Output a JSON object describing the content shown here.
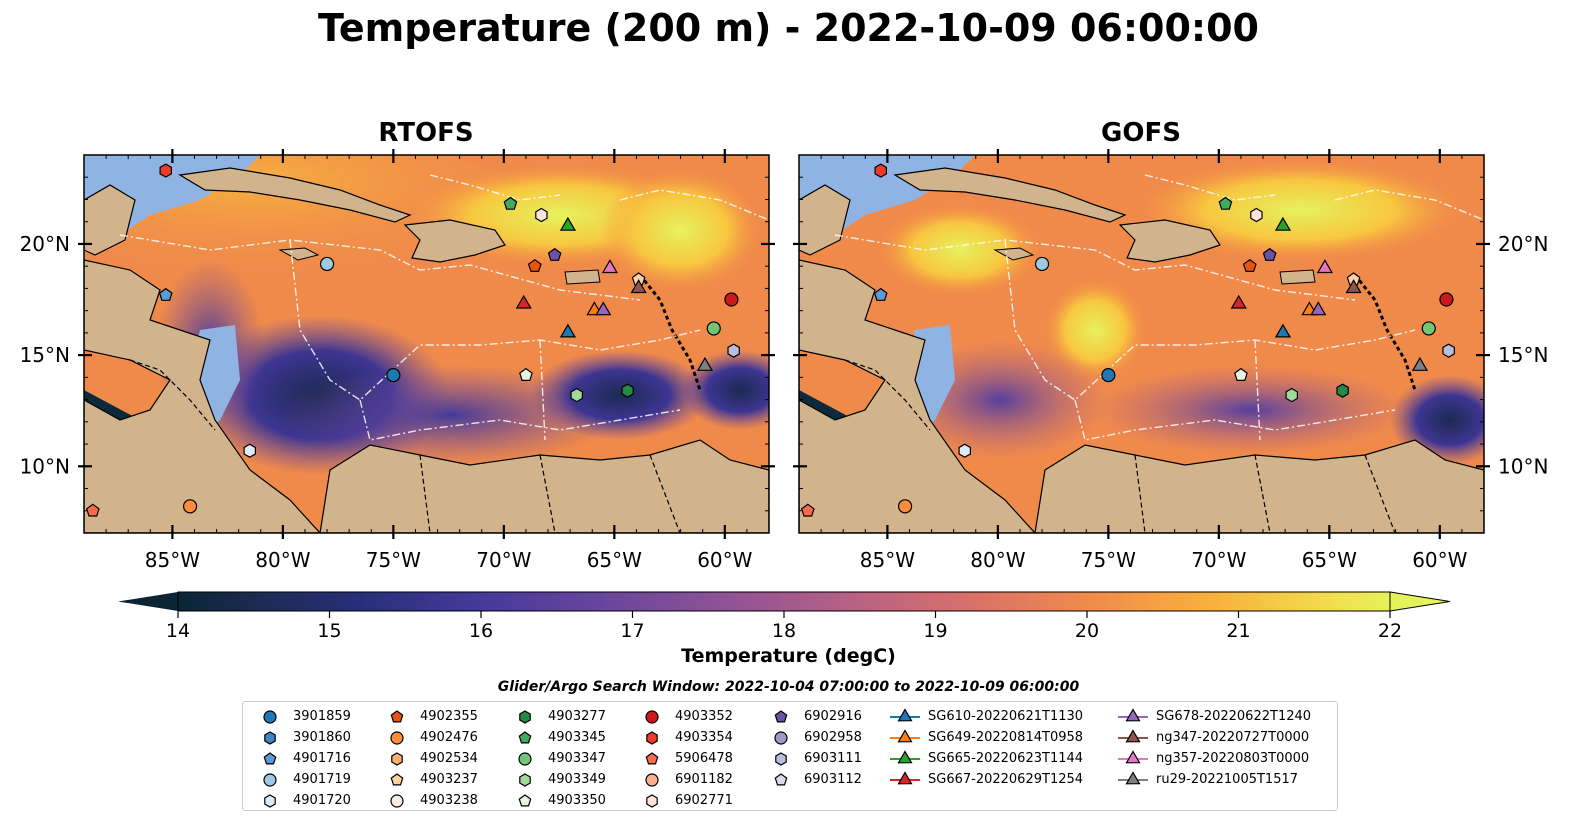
{
  "title": "Temperature (200 m) - 2022-10-09 06:00:00",
  "panels": [
    {
      "title": "RTOFS"
    },
    {
      "title": "GOFS"
    }
  ],
  "map": {
    "lon_range": [
      -89,
      -58
    ],
    "lat_range": [
      7,
      24
    ],
    "lon_ticks": [
      "85°W",
      "80°W",
      "75°W",
      "70°W",
      "65°W",
      "60°W"
    ],
    "lon_tick_values": [
      -85,
      -80,
      -75,
      -70,
      -65,
      -60
    ],
    "lat_ticks": [
      "10°N",
      "15°N",
      "20°N"
    ],
    "lat_tick_values": [
      10,
      15,
      20
    ],
    "land_color": "#d2b48c",
    "shelf_color": "#8fb4e3",
    "deep_color": "#0e2a3a"
  },
  "colorbar": {
    "label": "Temperature (degC)",
    "ticks": [
      "14",
      "15",
      "16",
      "17",
      "18",
      "19",
      "20",
      "21",
      "22"
    ],
    "range": [
      14,
      22
    ],
    "colors": [
      "#0b2535",
      "#1d2b54",
      "#282f7a",
      "#35348f",
      "#443a9a",
      "#563f9d",
      "#68459d",
      "#7b4c9b",
      "#8e5296",
      "#a1598f",
      "#b56085",
      "#c7677a",
      "#d86f6c",
      "#e57a5c",
      "#f08a4b",
      "#f69b41",
      "#f9af3d",
      "#f8c640",
      "#f1dd4c",
      "#e6f25b"
    ]
  },
  "legend": {
    "title": "Glider/Argo Search Window: 2022-10-04 07:00:00 to 2022-10-09 06:00:00",
    "columns": [
      [
        {
          "label": "3901859",
          "marker": "circle",
          "color": "#1f77b4"
        },
        {
          "label": "3901860",
          "marker": "hexagon",
          "color": "#3c86c4"
        },
        {
          "label": "4901716",
          "marker": "pentagon",
          "color": "#5a9bd5"
        },
        {
          "label": "4901719",
          "marker": "circle",
          "color": "#9ecae1"
        },
        {
          "label": "4901720",
          "marker": "hexagon",
          "color": "#deebf7"
        }
      ],
      [
        {
          "label": "4902355",
          "marker": "pentagon",
          "color": "#e6550d"
        },
        {
          "label": "4902476",
          "marker": "circle",
          "color": "#fd8d3c"
        },
        {
          "label": "4902534",
          "marker": "hexagon",
          "color": "#fdae6b"
        },
        {
          "label": "4903237",
          "marker": "pentagon",
          "color": "#fdd0a2"
        },
        {
          "label": "4903238",
          "marker": "circle",
          "color": "#feedde"
        }
      ],
      [
        {
          "label": "4903277",
          "marker": "hexagon",
          "color": "#238b45"
        },
        {
          "label": "4903345",
          "marker": "pentagon",
          "color": "#41ab5d"
        },
        {
          "label": "4903347",
          "marker": "circle",
          "color": "#74c476"
        },
        {
          "label": "4903349",
          "marker": "hexagon",
          "color": "#a1d99b"
        },
        {
          "label": "4903350",
          "marker": "pentagon",
          "color": "#e5f5e0"
        }
      ],
      [
        {
          "label": "4903352",
          "marker": "circle",
          "color": "#cb181d"
        },
        {
          "label": "4903354",
          "marker": "hexagon",
          "color": "#ef3b2c"
        },
        {
          "label": "5906478",
          "marker": "pentagon",
          "color": "#fb6a4a"
        },
        {
          "label": "6901182",
          "marker": "circle",
          "color": "#fcae91"
        },
        {
          "label": "6902771",
          "marker": "hexagon",
          "color": "#fee5d9"
        }
      ],
      [
        {
          "label": "6902916",
          "marker": "pentagon",
          "color": "#6a51a3"
        },
        {
          "label": "6902958",
          "marker": "circle",
          "color": "#9e9ac8"
        },
        {
          "label": "6903111",
          "marker": "hexagon",
          "color": "#bcbddc"
        },
        {
          "label": "6903112",
          "marker": "pentagon",
          "color": "#dadaeb"
        }
      ],
      [
        {
          "label": "SG610-20220621T1130",
          "marker": "triangle",
          "color": "#1f77b4"
        },
        {
          "label": "SG649-20220814T0958",
          "marker": "triangle",
          "color": "#ff7f0e"
        },
        {
          "label": "SG665-20220623T1144",
          "marker": "triangle",
          "color": "#2ca02c"
        },
        {
          "label": "SG667-20220629T1254",
          "marker": "triangle",
          "color": "#d62728"
        }
      ],
      [
        {
          "label": "SG678-20220622T1240",
          "marker": "triangle",
          "color": "#9467bd"
        },
        {
          "label": "ng347-20220727T0000",
          "marker": "triangle",
          "color": "#8c564b"
        },
        {
          "label": "ng357-20220803T0000",
          "marker": "triangle",
          "color": "#e377c2"
        },
        {
          "label": "ru29-20221005T1517",
          "marker": "triangle",
          "color": "#7f7f7f"
        }
      ]
    ]
  },
  "chart_data": {
    "type": "scatter",
    "title": "Temperature (200 m) - 2022-10-09 06:00:00",
    "xlabel": "",
    "ylabel": "",
    "xlim": [
      -89,
      -58
    ],
    "ylim": [
      7,
      24
    ],
    "series": [
      {
        "name": "3901859",
        "x": [
          -75.0
        ],
        "y": [
          14.1
        ]
      },
      {
        "name": "4901716",
        "x": [
          -85.3
        ],
        "y": [
          17.7
        ]
      },
      {
        "name": "4901719",
        "x": [
          -78.0
        ],
        "y": [
          19.1
        ]
      },
      {
        "name": "4901720",
        "x": [
          -81.5
        ],
        "y": [
          10.7
        ]
      },
      {
        "name": "4902355",
        "x": [
          -68.6
        ],
        "y": [
          19.0
        ]
      },
      {
        "name": "4902476",
        "x": [
          -84.2
        ],
        "y": [
          8.2
        ]
      },
      {
        "name": "4903237",
        "x": [
          -63.9
        ],
        "y": [
          18.4
        ]
      },
      {
        "name": "4903277",
        "x": [
          -64.4
        ],
        "y": [
          13.4
        ]
      },
      {
        "name": "4903345",
        "x": [
          -69.7
        ],
        "y": [
          21.8
        ]
      },
      {
        "name": "4903347",
        "x": [
          -60.5
        ],
        "y": [
          16.2
        ]
      },
      {
        "name": "4903349",
        "x": [
          -66.7
        ],
        "y": [
          13.2
        ]
      },
      {
        "name": "4903350",
        "x": [
          -69.0
        ],
        "y": [
          14.1
        ]
      },
      {
        "name": "4903352",
        "x": [
          -59.7
        ],
        "y": [
          17.5
        ]
      },
      {
        "name": "4903354",
        "x": [
          -85.3
        ],
        "y": [
          23.3
        ]
      },
      {
        "name": "5906478",
        "x": [
          -88.6
        ],
        "y": [
          8.0
        ]
      },
      {
        "name": "6902771",
        "x": [
          -68.3
        ],
        "y": [
          21.3
        ]
      },
      {
        "name": "6902916",
        "x": [
          -67.7
        ],
        "y": [
          19.5
        ]
      },
      {
        "name": "6903111",
        "x": [
          -59.6
        ],
        "y": [
          15.2
        ]
      },
      {
        "name": "SG610-20220621T1130",
        "x": [
          -67.1
        ],
        "y": [
          16.0
        ]
      },
      {
        "name": "SG649-20220814T0958",
        "x": [
          -65.9
        ],
        "y": [
          17.0
        ]
      },
      {
        "name": "SG665-20220623T1144",
        "x": [
          -67.1
        ],
        "y": [
          20.8
        ]
      },
      {
        "name": "SG667-20220629T1254",
        "x": [
          -69.1
        ],
        "y": [
          17.3
        ]
      },
      {
        "name": "SG678-20220622T1240",
        "x": [
          -65.5
        ],
        "y": [
          17.0
        ]
      },
      {
        "name": "ng347-20220727T0000",
        "x": [
          -63.9
        ],
        "y": [
          18.0
        ]
      },
      {
        "name": "ng357-20220803T0000",
        "x": [
          -65.2
        ],
        "y": [
          18.9
        ]
      },
      {
        "name": "ru29-20221005T1517",
        "x": [
          -60.9
        ],
        "y": [
          14.5
        ]
      }
    ]
  }
}
